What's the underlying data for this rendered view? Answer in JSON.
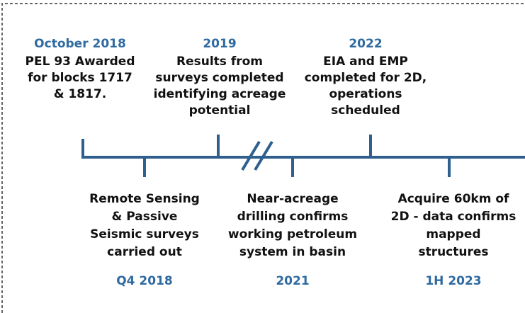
{
  "events": [
    {
      "date": "October 2018",
      "lines": [
        "PEL 93 Awarded",
        "for blocks 1717",
        "& 1817."
      ]
    },
    {
      "date": "Q4 2018",
      "lines": [
        "Remote Sensing",
        "& Passive",
        "Seismic surveys",
        "carried out"
      ]
    },
    {
      "date": "2019",
      "lines": [
        "Results from",
        "surveys completed",
        "identifying acreage",
        "potential"
      ]
    },
    {
      "date": "2021",
      "lines": [
        "Near-acreage",
        "drilling confirms",
        "working petroleum",
        "system in basin"
      ]
    },
    {
      "date": "2022",
      "lines": [
        "EIA and EMP",
        "completed for 2D,",
        "operations",
        "scheduled"
      ]
    },
    {
      "date": "1H 2023",
      "lines": [
        "Acquire 60km of",
        "2D - data confirms",
        "mapped",
        "structures"
      ]
    }
  ]
}
